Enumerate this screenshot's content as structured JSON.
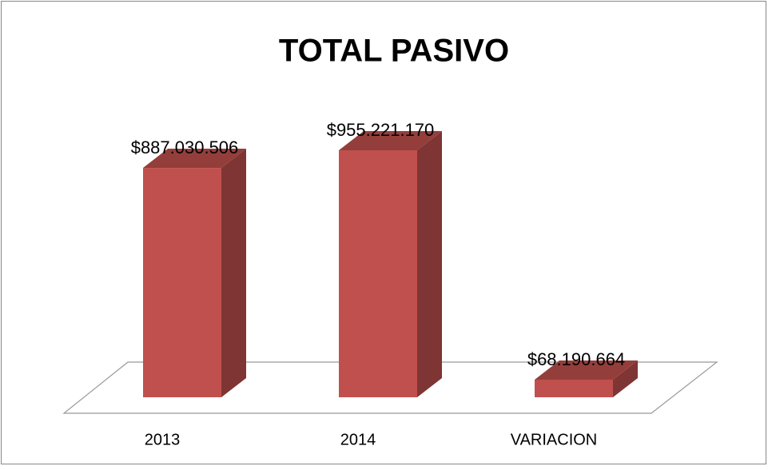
{
  "chart_data": {
    "type": "bar3d",
    "title": "TOTAL PASIVO",
    "categories": [
      "2013",
      "2014",
      "VARIACION"
    ],
    "values": [
      887030506,
      955221170,
      68190664
    ],
    "value_labels": [
      "$887.030.506",
      "$955.221.170",
      "$68.190.664"
    ],
    "color": "#c0504d"
  }
}
